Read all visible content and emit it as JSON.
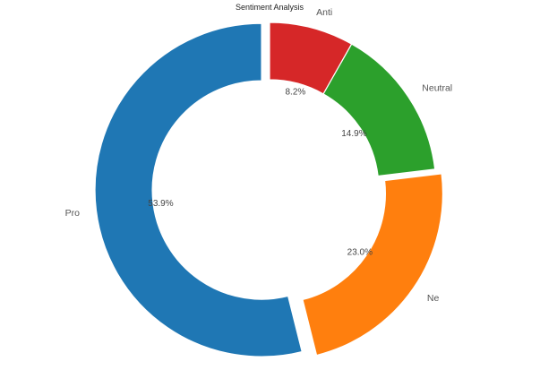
{
  "chart_data": {
    "type": "pie",
    "title": "Sentiment Analysis",
    "categories": [
      "Anti",
      "Neutral",
      "Ne",
      "Pro"
    ],
    "values": [
      8.2,
      14.9,
      23.0,
      53.9
    ],
    "value_labels": [
      "8.2%",
      "14.9%",
      "23.0%",
      "53.9%"
    ],
    "unit": "%",
    "colors": [
      "#d62728",
      "#2ca02c",
      "#ff7f0e",
      "#1f77b4"
    ],
    "exploded": [
      false,
      false,
      true,
      true
    ],
    "donut": true,
    "start_angle_deg": 90,
    "direction": "clockwise",
    "legend": "none"
  }
}
